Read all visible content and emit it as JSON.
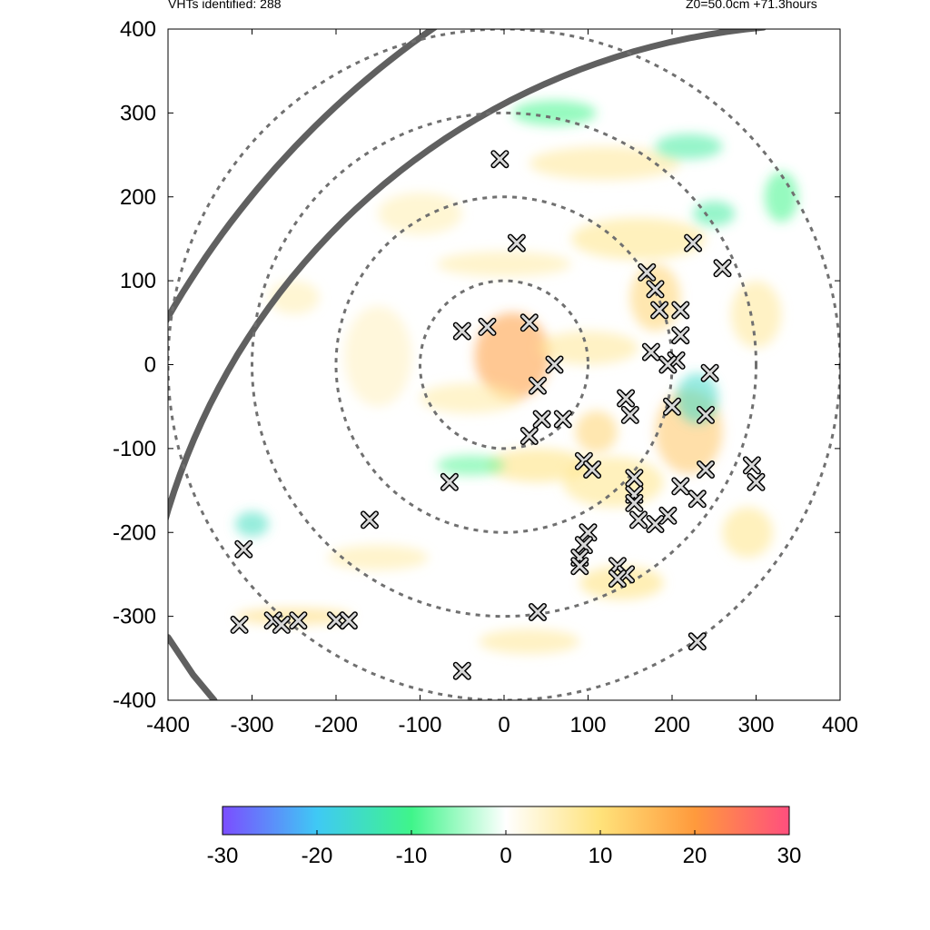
{
  "header": {
    "left_text": "VHTs identified: 288",
    "right_text": "Z0=50.0cm  +71.3hours"
  },
  "chart_data": {
    "type": "heatmap",
    "title": "",
    "xlabel": "",
    "ylabel": "",
    "xlim": [
      -400,
      400
    ],
    "ylim": [
      -400,
      400
    ],
    "x_ticks": [
      -400,
      -300,
      -200,
      -100,
      0,
      100,
      200,
      300,
      400
    ],
    "y_ticks": [
      -400,
      -300,
      -200,
      -100,
      0,
      100,
      200,
      300,
      400
    ],
    "x_tick_labels": [
      "-400",
      "-300",
      "-200",
      "-100",
      "0",
      "100",
      "200",
      "300",
      "400"
    ],
    "y_tick_labels": [
      "-400",
      "-300",
      "-200",
      "-100",
      "0",
      "100",
      "200",
      "300",
      "400"
    ],
    "range_rings_km": [
      100,
      200,
      300,
      400
    ],
    "colorbar": {
      "min": -30,
      "max": 30,
      "ticks": [
        -30,
        -20,
        -10,
        0,
        10,
        20,
        30
      ],
      "tick_labels": [
        "-30",
        "-20",
        "-10",
        "0",
        "10",
        "20",
        "30"
      ],
      "colors": [
        "#7b4dff",
        "#3fc9f5",
        "#3ff58a",
        "#ffffff",
        "#ffe27a",
        "#ff9a3c",
        "#ff4f7e"
      ]
    },
    "eye_center": [
      15,
      10
    ],
    "vht_count": 288,
    "vht_markers": [
      [
        -5,
        245
      ],
      [
        15,
        145
      ],
      [
        -50,
        40
      ],
      [
        -20,
        45
      ],
      [
        30,
        50
      ],
      [
        60,
        0
      ],
      [
        40,
        -25
      ],
      [
        45,
        -65
      ],
      [
        70,
        -65
      ],
      [
        30,
        -85
      ],
      [
        95,
        -115
      ],
      [
        105,
        -125
      ],
      [
        -65,
        -140
      ],
      [
        145,
        -40
      ],
      [
        150,
        -60
      ],
      [
        155,
        -135
      ],
      [
        155,
        -155
      ],
      [
        155,
        -165
      ],
      [
        170,
        110
      ],
      [
        180,
        90
      ],
      [
        185,
        65
      ],
      [
        210,
        65
      ],
      [
        175,
        15
      ],
      [
        210,
        35
      ],
      [
        205,
        5
      ],
      [
        195,
        0
      ],
      [
        245,
        -10
      ],
      [
        240,
        -60
      ],
      [
        200,
        -50
      ],
      [
        225,
        145
      ],
      [
        260,
        115
      ],
      [
        210,
        -145
      ],
      [
        240,
        -125
      ],
      [
        230,
        -160
      ],
      [
        195,
        -180
      ],
      [
        180,
        -190
      ],
      [
        100,
        -200
      ],
      [
        95,
        -215
      ],
      [
        90,
        -230
      ],
      [
        90,
        -240
      ],
      [
        135,
        -240
      ],
      [
        145,
        -250
      ],
      [
        135,
        -255
      ],
      [
        160,
        -185
      ],
      [
        -160,
        -185
      ],
      [
        -310,
        -220
      ],
      [
        -315,
        -310
      ],
      [
        -275,
        -305
      ],
      [
        -265,
        -310
      ],
      [
        -245,
        -305
      ],
      [
        -200,
        -305
      ],
      [
        -185,
        -305
      ],
      [
        40,
        -295
      ],
      [
        -50,
        -365
      ],
      [
        230,
        -330
      ],
      [
        295,
        -120
      ],
      [
        300,
        -140
      ]
    ],
    "track_arcs": [
      {
        "name": "track-inner",
        "center": [
          380,
          -410
        ],
        "radius": 815,
        "from_deg": 95,
        "to_deg": 190
      },
      {
        "name": "track-outer",
        "center": [
          520,
          -470
        ],
        "radius": 1060,
        "from_deg": 120,
        "to_deg": 175
      },
      {
        "name": "track-lower",
        "points": [
          [
            -400,
            -325
          ],
          [
            -370,
            -370
          ],
          [
            -345,
            -400
          ]
        ]
      }
    ],
    "anomaly_blobs": [
      {
        "x": 10,
        "y": 10,
        "rx": 45,
        "ry": 52,
        "v": 20
      },
      {
        "x": 100,
        "y": 20,
        "rx": 60,
        "ry": 20,
        "v": 8
      },
      {
        "x": -40,
        "y": -40,
        "rx": 60,
        "ry": 18,
        "v": 7
      },
      {
        "x": 160,
        "y": 150,
        "rx": 80,
        "ry": 25,
        "v": 9
      },
      {
        "x": 120,
        "y": 240,
        "rx": 90,
        "ry": 20,
        "v": 8
      },
      {
        "x": -100,
        "y": 180,
        "rx": 50,
        "ry": 25,
        "v": 6
      },
      {
        "x": 220,
        "y": 260,
        "rx": 40,
        "ry": 15,
        "v": -12
      },
      {
        "x": 60,
        "y": 300,
        "rx": 50,
        "ry": 15,
        "v": -10
      },
      {
        "x": 180,
        "y": 80,
        "rx": 30,
        "ry": 40,
        "v": 12
      },
      {
        "x": 220,
        "y": -80,
        "rx": 40,
        "ry": 50,
        "v": 14
      },
      {
        "x": 230,
        "y": -40,
        "rx": 25,
        "ry": 30,
        "v": -16
      },
      {
        "x": 130,
        "y": -140,
        "rx": 60,
        "ry": 30,
        "v": 9
      },
      {
        "x": 40,
        "y": -120,
        "rx": 60,
        "ry": 20,
        "v": 10
      },
      {
        "x": -40,
        "y": -120,
        "rx": 40,
        "ry": 12,
        "v": -9
      },
      {
        "x": 140,
        "y": -260,
        "rx": 50,
        "ry": 20,
        "v": 10
      },
      {
        "x": 30,
        "y": -330,
        "rx": 60,
        "ry": 15,
        "v": 8
      },
      {
        "x": -150,
        "y": -230,
        "rx": 60,
        "ry": 15,
        "v": 7
      },
      {
        "x": -250,
        "y": -300,
        "rx": 70,
        "ry": 10,
        "v": 11
      },
      {
        "x": -300,
        "y": -190,
        "rx": 20,
        "ry": 15,
        "v": -15
      },
      {
        "x": -250,
        "y": 80,
        "rx": 30,
        "ry": 20,
        "v": 6
      },
      {
        "x": 300,
        "y": 60,
        "rx": 30,
        "ry": 40,
        "v": 8
      },
      {
        "x": 290,
        "y": -200,
        "rx": 30,
        "ry": 30,
        "v": 9
      },
      {
        "x": -150,
        "y": 10,
        "rx": 40,
        "ry": 60,
        "v": 5
      },
      {
        "x": 0,
        "y": 120,
        "rx": 80,
        "ry": 15,
        "v": 7
      },
      {
        "x": 330,
        "y": 200,
        "rx": 20,
        "ry": 30,
        "v": -10
      },
      {
        "x": 250,
        "y": 180,
        "rx": 25,
        "ry": 15,
        "v": -12
      },
      {
        "x": 110,
        "y": -80,
        "rx": 25,
        "ry": 25,
        "v": 12
      }
    ]
  }
}
